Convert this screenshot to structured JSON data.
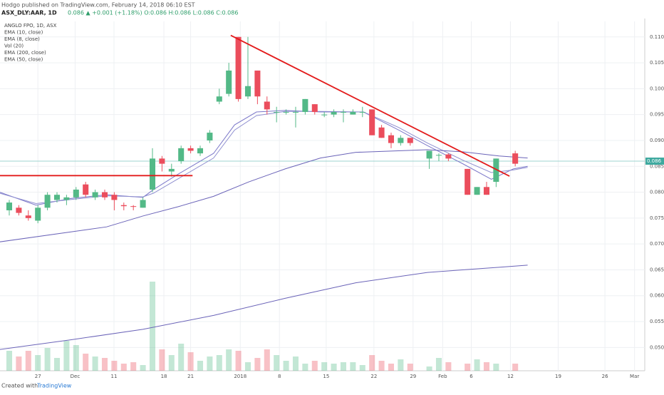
{
  "header": {
    "publisher": "Hodgo published on TradingView.com, February 14, 2018 06:10 EST",
    "symbol": "ASX_DLY:AAR, 1D",
    "quote": "0.086 ▲ +0.001 (+1.18%) O:0.086 H:0.086 L:0.086 C:0.086"
  },
  "footer": {
    "created": "Created with",
    "brand": "TradingView"
  },
  "chart_data": {
    "type": "candlestick",
    "legend": [
      "ANGLO FPO, 1D, ASX",
      "EMA (10, close)",
      "EMA (8, close)",
      "Vol (20)",
      "EMA (200, close)",
      "EMA (50, close)"
    ],
    "xlim": [
      -0.97,
      66.57
    ],
    "xticks": [
      {
        "value": 3.0,
        "label": "27"
      },
      {
        "value": 6.9,
        "label": "Dec"
      },
      {
        "value": 10.97,
        "label": "11"
      },
      {
        "value": 16.2,
        "label": "18"
      },
      {
        "value": 19.0,
        "label": "21"
      },
      {
        "value": 24.2,
        "label": "2018"
      },
      {
        "value": 28.3,
        "label": "8"
      },
      {
        "value": 33.2,
        "label": "15"
      },
      {
        "value": 38.2,
        "label": "22"
      },
      {
        "value": 42.3,
        "label": "29"
      },
      {
        "value": 45.4,
        "label": "Feb"
      },
      {
        "value": 48.4,
        "label": "6"
      },
      {
        "value": 52.5,
        "label": "12"
      },
      {
        "value": 57.5,
        "label": "19"
      },
      {
        "value": 62.4,
        "label": "26"
      },
      {
        "value": 65.5,
        "label": "Mar"
      }
    ],
    "ylim": [
      0.0455,
      0.113
    ],
    "yticks": [
      {
        "value": 0.05,
        "label": "0.050"
      },
      0.055,
      {
        "value": 0.06,
        "label": "0.060"
      },
      0.065,
      {
        "value": 0.07,
        "label": "0.070"
      },
      0.075,
      {
        "value": 0.08,
        "label": "0.080"
      },
      0.085,
      {
        "value": 0.09,
        "label": "0.090"
      },
      0.095,
      {
        "value": 0.1,
        "label": "0.100"
      },
      0.105,
      {
        "value": 0.11,
        "label": "0.110"
      }
    ],
    "grid": true,
    "up_color": "#53b987",
    "down_color": "#eb4d5c",
    "last_price": 0.086,
    "x": [
      0,
      1,
      2,
      3,
      4,
      5,
      6,
      7,
      8,
      9,
      10,
      11,
      12,
      13,
      14,
      15,
      16,
      17,
      18,
      19,
      20,
      21,
      22,
      23,
      24,
      25,
      26,
      27,
      28,
      29,
      30,
      31,
      32,
      33,
      34,
      35,
      36,
      37,
      38,
      39,
      40,
      41,
      42,
      44,
      45,
      46,
      48,
      49,
      50,
      51,
      53
    ],
    "open": [
      0.0765,
      0.077,
      0.0755,
      0.0745,
      0.077,
      0.0785,
      0.0785,
      0.079,
      0.0815,
      0.079,
      0.08,
      0.0795,
      0.0775,
      0.0773,
      0.077,
      0.0805,
      0.0865,
      0.084,
      0.086,
      0.0885,
      0.0875,
      0.09,
      0.0975,
      0.099,
      0.11,
      0.0985,
      0.1035,
      0.0975,
      0.0955,
      0.0955,
      0.0955,
      0.0955,
      0.097,
      0.095,
      0.095,
      0.0955,
      0.095,
      0.0955,
      0.096,
      0.0925,
      0.091,
      0.0895,
      0.0905,
      0.0865,
      0.0872,
      0.0873,
      0.0845,
      0.0795,
      0.081,
      0.082,
      0.0875
    ],
    "close": [
      0.078,
      0.076,
      0.075,
      0.077,
      0.0795,
      0.0795,
      0.079,
      0.0805,
      0.0795,
      0.08,
      0.079,
      0.0785,
      0.0773,
      0.0772,
      0.0785,
      0.0865,
      0.0855,
      0.0845,
      0.0885,
      0.088,
      0.0885,
      0.0915,
      0.0985,
      0.1035,
      0.098,
      0.1005,
      0.0985,
      0.096,
      0.0955,
      0.0955,
      0.0955,
      0.098,
      0.0955,
      0.095,
      0.0955,
      0.0955,
      0.0955,
      0.0955,
      0.091,
      0.0905,
      0.0895,
      0.0905,
      0.0895,
      0.088,
      0.0872,
      0.0865,
      0.0795,
      0.081,
      0.0795,
      0.0865,
      0.0855
    ],
    "high": [
      0.0785,
      0.0775,
      0.0765,
      0.0775,
      0.08,
      0.08,
      0.0795,
      0.081,
      0.082,
      0.0805,
      0.0805,
      0.08,
      0.078,
      0.0775,
      0.079,
      0.0885,
      0.087,
      0.0855,
      0.089,
      0.089,
      0.089,
      0.092,
      0.1,
      0.105,
      0.11,
      0.11,
      0.1035,
      0.0985,
      0.0965,
      0.096,
      0.0965,
      0.098,
      0.097,
      0.0955,
      0.096,
      0.096,
      0.096,
      0.0965,
      0.096,
      0.093,
      0.0915,
      0.091,
      0.0905,
      0.088,
      0.0875,
      0.0875,
      0.0845,
      0.081,
      0.082,
      0.0865,
      0.088
    ],
    "low": [
      0.0755,
      0.0755,
      0.0745,
      0.074,
      0.0765,
      0.078,
      0.0775,
      0.0785,
      0.079,
      0.0785,
      0.0785,
      0.0765,
      0.0765,
      0.0765,
      0.077,
      0.08,
      0.084,
      0.083,
      0.0855,
      0.0875,
      0.087,
      0.0895,
      0.097,
      0.0985,
      0.0975,
      0.098,
      0.097,
      0.095,
      0.0935,
      0.095,
      0.0925,
      0.095,
      0.095,
      0.0945,
      0.0945,
      0.0935,
      0.095,
      0.0945,
      0.091,
      0.0905,
      0.0885,
      0.089,
      0.089,
      0.0845,
      0.086,
      0.086,
      0.0795,
      0.0795,
      0.0795,
      0.081,
      0.085
    ],
    "volume": [
      28,
      20,
      28,
      22,
      32,
      18,
      42,
      36,
      24,
      20,
      18,
      14,
      10,
      12,
      8,
      125,
      30,
      22,
      38,
      26,
      14,
      20,
      22,
      30,
      28,
      12,
      18,
      30,
      22,
      14,
      20,
      10,
      14,
      12,
      10,
      12,
      12,
      8,
      22,
      14,
      10,
      16,
      10,
      6,
      18,
      12,
      10,
      16,
      12,
      10,
      10
    ],
    "lines": [
      {
        "color": "#7b77c9",
        "x": [
          -1,
          2.8,
          6.5,
          10.2,
          14,
          15.1,
          17.7,
          21.4,
          23.6,
          25.9,
          28.9,
          32.6,
          37.1,
          40.8,
          43.8,
          47.5,
          50.5,
          52.8,
          54.3
        ],
        "values": [
          0.08,
          0.0775,
          0.0788,
          0.0795,
          0.079,
          0.0805,
          0.0835,
          0.0875,
          0.093,
          0.0955,
          0.0958,
          0.0955,
          0.0955,
          0.092,
          0.089,
          0.0855,
          0.0825,
          0.0845,
          0.085
        ]
      },
      {
        "color": "#8f8fd0",
        "x": [
          -1,
          2.8,
          6.5,
          10.2,
          14,
          15.1,
          17.7,
          21.4,
          23.6,
          25.9,
          28.9,
          32.6,
          37.1,
          40.8,
          43.8,
          47.5,
          50.5,
          52.8,
          54.3
        ],
        "values": [
          0.0798,
          0.0778,
          0.0786,
          0.0793,
          0.0791,
          0.0798,
          0.0826,
          0.0866,
          0.092,
          0.0948,
          0.0956,
          0.0956,
          0.0955,
          0.0925,
          0.0895,
          0.0862,
          0.0838,
          0.0843,
          0.0848
        ]
      },
      {
        "color": "#6a63b8",
        "x": [
          -1,
          6.5,
          14,
          21.4,
          28.9,
          36.3,
          43.8,
          51.3,
          54.3
        ],
        "values": [
          0.0496,
          0.0515,
          0.0535,
          0.0562,
          0.0595,
          0.0625,
          0.0645,
          0.0655,
          0.0659
        ]
      },
      {
        "color": "#6a63b8",
        "x": [
          -1,
          10.2,
          14,
          17.7,
          21.4,
          25.1,
          28.9,
          32.6,
          36.3,
          43.8,
          47.5,
          51.3,
          54.3
        ],
        "values": [
          0.0704,
          0.0733,
          0.0754,
          0.0772,
          0.0792,
          0.082,
          0.0845,
          0.0866,
          0.0877,
          0.0882,
          0.0878,
          0.087,
          0.0866
        ]
      }
    ],
    "trendlines": [
      {
        "x": [
          -0.97,
          19.2
        ],
        "values": [
          0.0832,
          0.0832
        ]
      },
      {
        "x": [
          23.2,
          52.4
        ],
        "values": [
          0.1103,
          0.0831
        ]
      }
    ]
  }
}
